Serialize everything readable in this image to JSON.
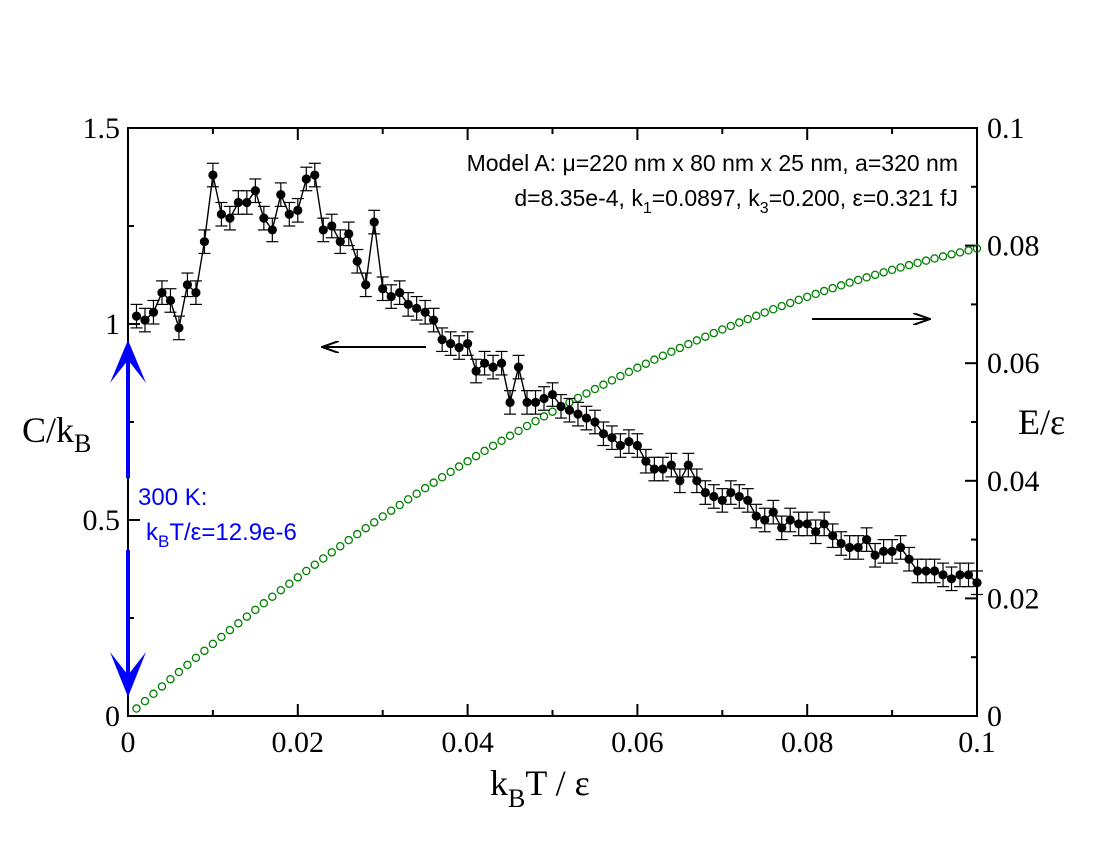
{
  "chart_data": {
    "type": "scatter",
    "xlabel": "k_B T / ε",
    "ylabel_left": "C/k_B",
    "ylabel_right": "E/ε",
    "xlim": [
      0,
      0.1
    ],
    "ylim_left": [
      0,
      1.5
    ],
    "ylim_right": [
      0,
      0.1
    ],
    "xticks": [
      "0",
      "0.02",
      "0.04",
      "0.06",
      "0.08",
      "0.1"
    ],
    "yticks_left": [
      "0",
      "0.5",
      "1",
      "1.5"
    ],
    "yticks_right": [
      "0",
      "0.02",
      "0.04",
      "0.06",
      "0.08",
      "0.1"
    ],
    "annotation_line1": "Model A: μ=220 nm x 80 nm x 25 nm, a=320 nm",
    "annotation_line2": "d=8.35e-4,  k₁=0.0897,  k₃=0.200, ε=0.321 fJ",
    "blue_note_line1": "300 K:",
    "blue_note_line2": "k_B T/ε=12.9e-6",
    "colors": {
      "heat_capacity": "#000000",
      "energy": "#008000",
      "marker": "#0000ff"
    },
    "series": [
      {
        "name": "C/k_B (left axis)",
        "axis": "left",
        "style": "filled-circles-line-errorbars",
        "x": [
          0.001,
          0.002,
          0.003,
          0.004,
          0.005,
          0.006,
          0.007,
          0.008,
          0.009,
          0.01,
          0.011,
          0.012,
          0.013,
          0.014,
          0.015,
          0.016,
          0.017,
          0.018,
          0.019,
          0.02,
          0.021,
          0.022,
          0.023,
          0.024,
          0.025,
          0.026,
          0.027,
          0.028,
          0.029,
          0.03,
          0.031,
          0.032,
          0.033,
          0.034,
          0.035,
          0.036,
          0.037,
          0.038,
          0.039,
          0.04,
          0.041,
          0.042,
          0.043,
          0.044,
          0.045,
          0.046,
          0.047,
          0.048,
          0.049,
          0.05,
          0.051,
          0.052,
          0.053,
          0.054,
          0.055,
          0.056,
          0.057,
          0.058,
          0.059,
          0.06,
          0.061,
          0.062,
          0.063,
          0.064,
          0.065,
          0.066,
          0.067,
          0.068,
          0.069,
          0.07,
          0.071,
          0.072,
          0.073,
          0.074,
          0.075,
          0.076,
          0.077,
          0.078,
          0.079,
          0.08,
          0.081,
          0.082,
          0.083,
          0.084,
          0.085,
          0.086,
          0.087,
          0.088,
          0.089,
          0.09,
          0.091,
          0.092,
          0.093,
          0.094,
          0.095,
          0.096,
          0.097,
          0.098,
          0.099,
          0.1
        ],
        "y": [
          1.02,
          1.01,
          1.03,
          1.08,
          1.06,
          0.99,
          1.1,
          1.08,
          1.21,
          1.38,
          1.28,
          1.27,
          1.31,
          1.31,
          1.34,
          1.27,
          1.24,
          1.33,
          1.28,
          1.29,
          1.37,
          1.38,
          1.24,
          1.25,
          1.21,
          1.23,
          1.16,
          1.1,
          1.26,
          1.09,
          1.07,
          1.08,
          1.05,
          1.04,
          1.03,
          1.01,
          0.96,
          0.95,
          0.94,
          0.95,
          0.88,
          0.9,
          0.89,
          0.9,
          0.8,
          0.89,
          0.8,
          0.8,
          0.81,
          0.82,
          0.79,
          0.78,
          0.77,
          0.76,
          0.75,
          0.72,
          0.71,
          0.69,
          0.7,
          0.69,
          0.65,
          0.63,
          0.63,
          0.64,
          0.6,
          0.64,
          0.6,
          0.57,
          0.56,
          0.55,
          0.57,
          0.56,
          0.55,
          0.51,
          0.5,
          0.52,
          0.48,
          0.5,
          0.49,
          0.49,
          0.47,
          0.49,
          0.46,
          0.44,
          0.43,
          0.43,
          0.45,
          0.41,
          0.42,
          0.42,
          0.43,
          0.4,
          0.37,
          0.37,
          0.37,
          0.36,
          0.35,
          0.36,
          0.36,
          0.34
        ],
        "error": 0.03
      },
      {
        "name": "E/ε (right axis)",
        "axis": "right",
        "style": "open-circles",
        "x_start": 0.001,
        "x_step": 0.001,
        "x_end": 0.1,
        "y_model": "E ≈ 1.275·x − 4.8·x² (reads 0 at x=0, ≈0.052 at x=0.05, 0.080 at x=0.1)"
      }
    ]
  }
}
